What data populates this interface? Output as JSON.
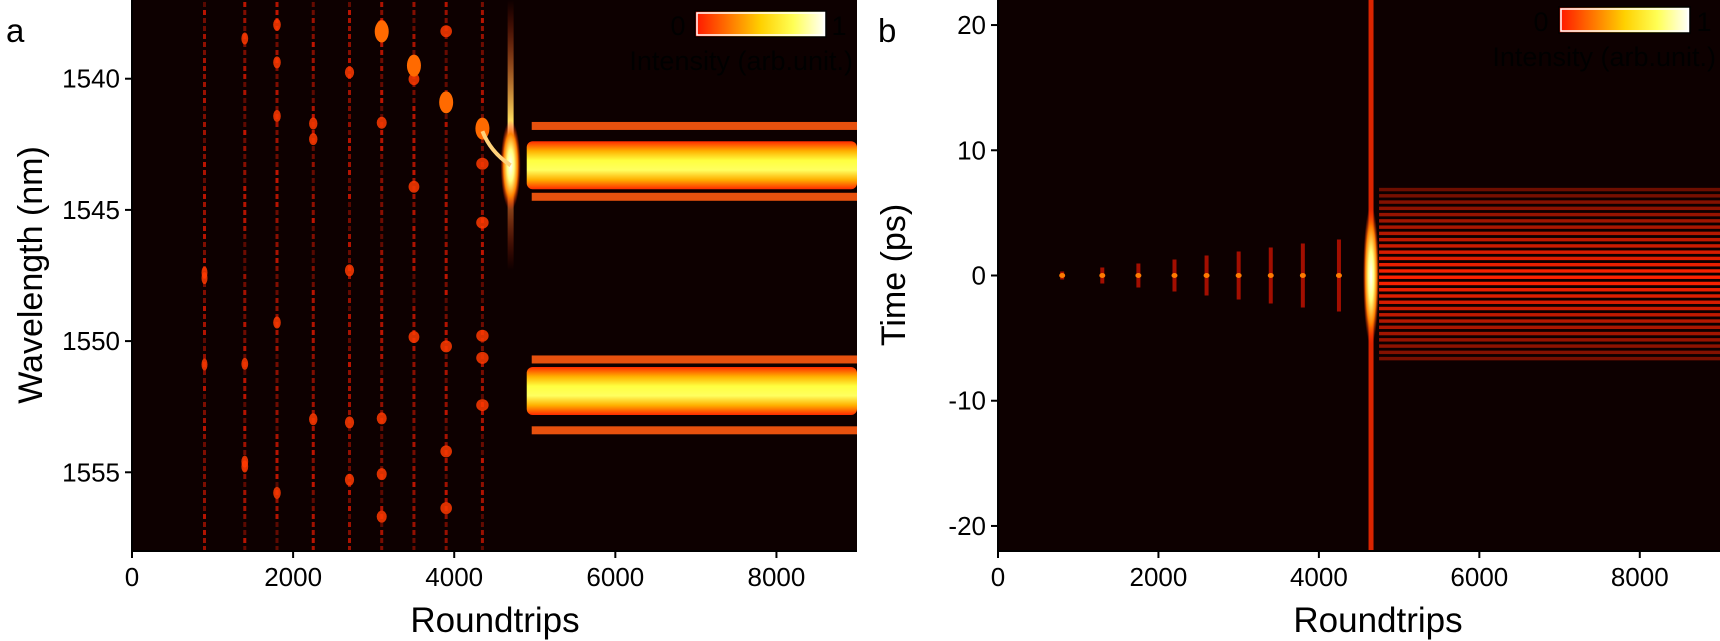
{
  "panels": [
    {
      "letter": "a",
      "colorbar": {
        "min_label": "0",
        "max_label": "1",
        "label": "Intensity (arb.unit.)"
      }
    },
    {
      "letter": "b",
      "colorbar": {
        "min_label": "0",
        "max_label": "1",
        "label": "Intensity (arb.unit.)"
      }
    }
  ],
  "chart_data": [
    {
      "type": "heatmap",
      "xlabel": "Roundtrips",
      "ylabel": "Wavelength (nm)",
      "xlim": [
        0,
        9000
      ],
      "ylim": [
        1558,
        1537
      ],
      "y_inverted": true,
      "xticks": [
        0,
        2000,
        4000,
        6000,
        8000
      ],
      "yticks": [
        1540,
        1545,
        1550,
        1555
      ],
      "colormap": [
        "#000000",
        "#ff1a00",
        "#ffff00",
        "#ffffff"
      ],
      "value_range": [
        0,
        1
      ],
      "features": {
        "early_pulses_roundtrips": [
          900,
          1400,
          1800,
          2250,
          2700,
          3100,
          3500,
          3900,
          4350
        ],
        "transition_roundtrip": 4700,
        "stable_from_roundtrip": 4900,
        "bright_bands_nm": [
          1543.3,
          1551.9
        ],
        "weak_sidebands_nm": [
          1541.8,
          1544.5,
          1550.7,
          1553.4
        ]
      }
    },
    {
      "type": "heatmap",
      "xlabel": "Roundtrips",
      "ylabel": "Time (ps)",
      "xlim": [
        0,
        9000
      ],
      "ylim": [
        -22,
        22
      ],
      "xticks": [
        0,
        2000,
        4000,
        6000,
        8000
      ],
      "yticks": [
        20,
        10,
        0,
        -10,
        -20
      ],
      "colormap": [
        "#000000",
        "#ff1a00",
        "#ffff00",
        "#ffffff"
      ],
      "value_range": [
        0,
        1
      ],
      "features": {
        "early_pulses_roundtrips": [
          800,
          1300,
          1750,
          2200,
          2600,
          3000,
          3400,
          3800,
          4250
        ],
        "transition_roundtrip": 4650,
        "stable_from_roundtrip": 4750,
        "stable_time_span_ps": [
          -7,
          7
        ]
      }
    }
  ]
}
